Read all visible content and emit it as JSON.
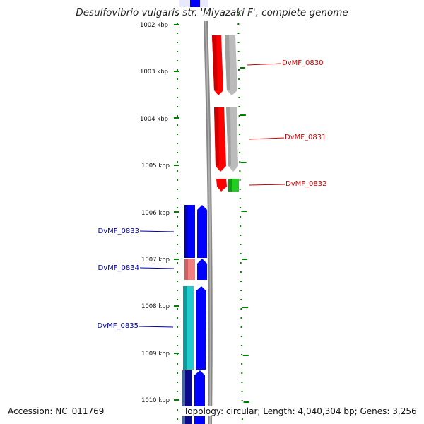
{
  "title": "Desulfovibrio vulgaris str. 'Miyazaki F', complete genome",
  "footer": {
    "accession": "Accession: NC_011769",
    "topology": "Topology: circular; Length: 4,040,304 bp; Genes: 3,256"
  },
  "axis": {
    "unit": "kbp",
    "ticks": [
      "1002 kbp",
      "1003 kbp",
      "1004 kbp",
      "1005 kbp",
      "1006 kbp",
      "1007 kbp",
      "1008 kbp",
      "1009 kbp",
      "1010 kbp"
    ]
  },
  "colors": {
    "forward_gene": "#ff0000",
    "forward_label": "#cc0000",
    "reverse_gene": "#0000ff",
    "reverse_label": "#0000aa",
    "green_gene": "#22cc22",
    "cyan_gene": "#22cccc",
    "pink_gene": "#f08080",
    "gray_cds": "#bbbbbb",
    "tick_green": "#008000",
    "backbone": "#888888"
  },
  "genes": {
    "forward": [
      {
        "label": "DvMF_0830",
        "start_kbp": 1002.25,
        "end_kbp": 1003.55
      },
      {
        "label": "DvMF_0831",
        "start_kbp": 1003.75,
        "end_kbp": 1005.15
      },
      {
        "label": "DvMF_0832",
        "start_kbp": 1005.3,
        "end_kbp": 1005.55
      }
    ],
    "reverse": [
      {
        "label": "DvMF_0833",
        "start_kbp": 1005.85,
        "end_kbp": 1006.98
      },
      {
        "label": "DvMF_0834",
        "start_kbp": 1006.98,
        "end_kbp": 1007.45
      },
      {
        "label": "DvMF_0835",
        "start_kbp": 1007.55,
        "end_kbp": 1009.35
      },
      {
        "label": "",
        "start_kbp": 1009.4,
        "end_kbp": 1010.5
      }
    ]
  }
}
